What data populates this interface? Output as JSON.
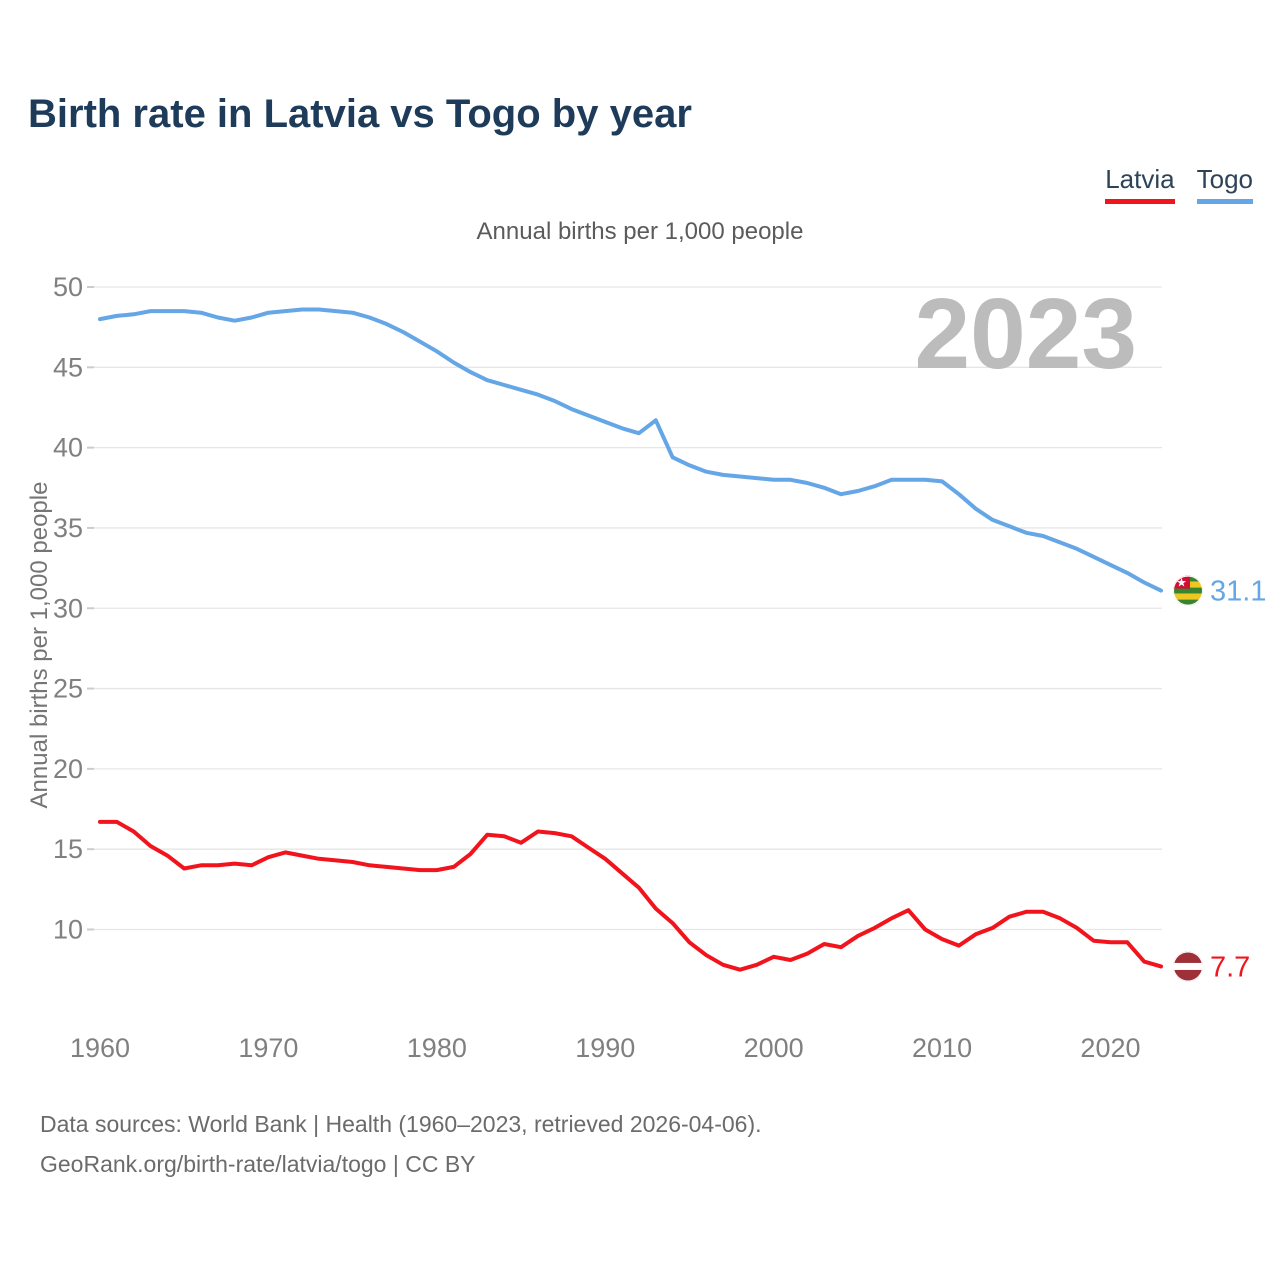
{
  "header": {
    "title": "Birth rate in Latvia vs Togo by year"
  },
  "legend": {
    "items": [
      {
        "label": "Latvia",
        "color": "#f1141d"
      },
      {
        "label": "Togo",
        "color": "#65a6e6"
      }
    ]
  },
  "chart_data": {
    "type": "line",
    "title": "Birth rate in Latvia vs Togo by year",
    "subtitle": "Annual births per 1,000 people",
    "ylabel": "Annual births per 1,000 people",
    "watermark_year": "2023",
    "x_start": 1960,
    "x_end": 2023,
    "xlim": [
      1960,
      2023
    ],
    "ylim": [
      5,
      50
    ],
    "xticks": [
      1960,
      1970,
      1980,
      1990,
      2000,
      2010,
      2020
    ],
    "yticks": [
      10,
      15,
      20,
      25,
      30,
      35,
      40,
      45,
      50
    ],
    "grid": true,
    "legend_position": "top-right",
    "series": [
      {
        "name": "Togo",
        "color": "#65a6e6",
        "end_label": "31.1",
        "flag": "togo",
        "values": [
          48.0,
          48.2,
          48.3,
          48.5,
          48.5,
          48.5,
          48.4,
          48.1,
          47.9,
          48.1,
          48.4,
          48.5,
          48.6,
          48.6,
          48.5,
          48.4,
          48.1,
          47.7,
          47.2,
          46.6,
          46.0,
          45.3,
          44.7,
          44.2,
          43.9,
          43.6,
          43.3,
          42.9,
          42.4,
          42.0,
          41.6,
          41.2,
          40.9,
          41.7,
          39.4,
          38.9,
          38.5,
          38.3,
          38.2,
          38.1,
          38.0,
          38.0,
          37.8,
          37.5,
          37.1,
          37.3,
          37.6,
          38.0,
          38.0,
          38.0,
          37.9,
          37.1,
          36.2,
          35.5,
          35.1,
          34.7,
          34.5,
          34.1,
          33.7,
          33.2,
          32.7,
          32.2,
          31.6,
          31.1
        ]
      },
      {
        "name": "Latvia",
        "color": "#f1141d",
        "end_label": "7.7",
        "flag": "latvia",
        "values": [
          16.7,
          16.7,
          16.1,
          15.2,
          14.6,
          13.8,
          14.0,
          14.0,
          14.1,
          14.0,
          14.5,
          14.8,
          14.6,
          14.4,
          14.3,
          14.2,
          14.0,
          13.9,
          13.8,
          13.7,
          13.7,
          13.9,
          14.7,
          15.9,
          15.8,
          15.4,
          16.1,
          16.0,
          15.8,
          15.1,
          14.4,
          13.5,
          12.6,
          11.3,
          10.4,
          9.2,
          8.4,
          7.8,
          7.5,
          7.8,
          8.3,
          8.1,
          8.5,
          9.1,
          8.9,
          9.6,
          10.1,
          10.7,
          11.2,
          10.0,
          9.4,
          9.0,
          9.7,
          10.1,
          10.8,
          11.1,
          11.1,
          10.7,
          10.1,
          9.3,
          9.2,
          9.2,
          8.0,
          7.7
        ]
      }
    ],
    "flags": {
      "togo": {
        "green": "#38842f",
        "yellow": "#eec723",
        "red": "#d21034",
        "star": "#ffffff"
      },
      "latvia": {
        "carmine": "#9e3039",
        "white": "#ffffff"
      }
    },
    "axis_colors": {
      "tick_text": "#808080",
      "gridline": "#e6e6e6",
      "tick_dash": "#cccccc",
      "watermark": "#bcbcbc"
    }
  },
  "footer": {
    "line1": "Data sources: World Bank | Health (1960–2023, retrieved 2026-04-06).",
    "line2": "GeoRank.org/birth-rate/latvia/togo | CC BY"
  }
}
